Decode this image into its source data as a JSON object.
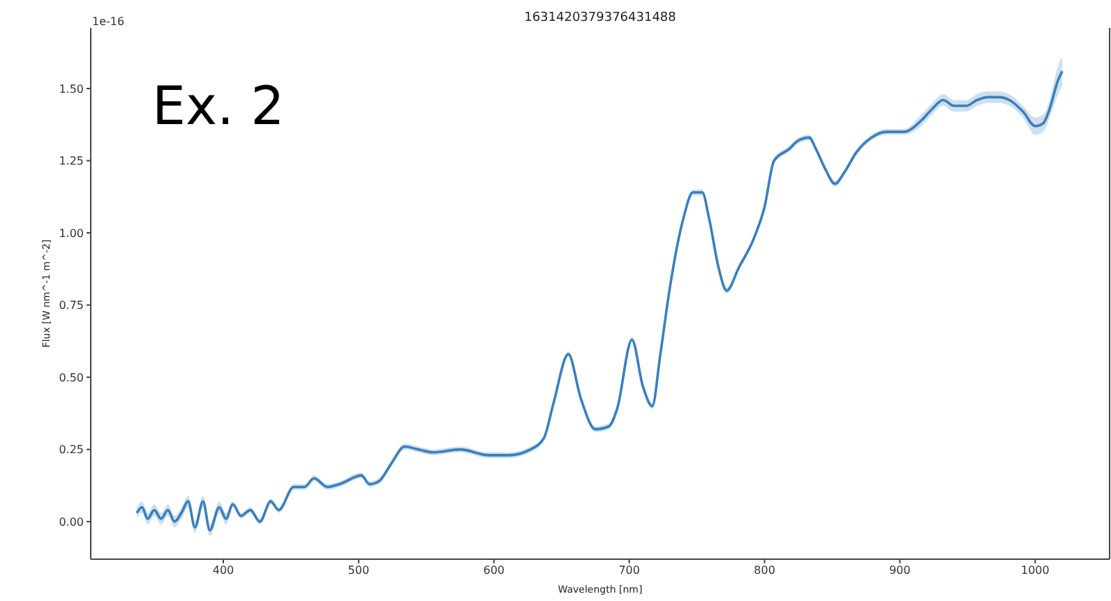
{
  "chart_data": {
    "type": "line",
    "title": "1631420379376431488",
    "xlabel": "Wavelength [nm]",
    "ylabel": "Flux [W nm^-1 m^-2]",
    "annotations": [
      "1e-16",
      "Ex. 2"
    ],
    "x": [
      336,
      340,
      344,
      349,
      354,
      359,
      364,
      369,
      374,
      379,
      385,
      390,
      397,
      402,
      407,
      413,
      420,
      427,
      435,
      441,
      452,
      460,
      467,
      477,
      486,
      502,
      508,
      515,
      524,
      534,
      544,
      555,
      575,
      596,
      611,
      627,
      637,
      644,
      655,
      664,
      675,
      685,
      691,
      702,
      710,
      717,
      723,
      730,
      740,
      747,
      754,
      759,
      766,
      772,
      781,
      792,
      800,
      807,
      818,
      825,
      833,
      838,
      845,
      852,
      859,
      868,
      879,
      890,
      903,
      916,
      924,
      932,
      940,
      949,
      957,
      965,
      973,
      981,
      991,
      1000,
      1006,
      1010,
      1017,
      1020
    ],
    "series": [
      {
        "color": "#3a7fbd",
        "values": [
          0.03,
          0.05,
          0.01,
          0.04,
          0.01,
          0.04,
          0.0,
          0.03,
          0.07,
          -0.02,
          0.07,
          -0.03,
          0.05,
          0.01,
          0.06,
          0.02,
          0.04,
          0.0,
          0.07,
          0.04,
          0.12,
          0.12,
          0.15,
          0.12,
          0.13,
          0.16,
          0.13,
          0.14,
          0.2,
          0.26,
          0.25,
          0.24,
          0.25,
          0.23,
          0.23,
          0.25,
          0.29,
          0.41,
          0.58,
          0.43,
          0.32,
          0.33,
          0.39,
          0.63,
          0.47,
          0.4,
          0.58,
          0.81,
          1.05,
          1.14,
          1.14,
          1.05,
          0.88,
          0.8,
          0.88,
          0.98,
          1.09,
          1.25,
          1.29,
          1.32,
          1.33,
          1.29,
          1.22,
          1.17,
          1.21,
          1.28,
          1.33,
          1.35,
          1.35,
          1.39,
          1.43,
          1.46,
          1.44,
          1.44,
          1.46,
          1.47,
          1.47,
          1.46,
          1.42,
          1.37,
          1.38,
          1.42,
          1.53,
          1.56
        ],
        "lower": [
          0.01,
          0.03,
          -0.01,
          0.02,
          -0.01,
          0.02,
          -0.02,
          0.01,
          0.05,
          -0.04,
          0.05,
          -0.05,
          0.03,
          -0.01,
          0.05,
          0.01,
          0.03,
          -0.01,
          0.06,
          0.03,
          0.11,
          0.11,
          0.14,
          0.11,
          0.12,
          0.15,
          0.12,
          0.13,
          0.19,
          0.25,
          0.24,
          0.23,
          0.24,
          0.22,
          0.22,
          0.24,
          0.28,
          0.4,
          0.57,
          0.42,
          0.31,
          0.32,
          0.38,
          0.62,
          0.46,
          0.39,
          0.57,
          0.8,
          1.04,
          1.13,
          1.13,
          1.04,
          0.87,
          0.79,
          0.87,
          0.97,
          1.08,
          1.24,
          1.28,
          1.31,
          1.32,
          1.28,
          1.21,
          1.16,
          1.2,
          1.27,
          1.32,
          1.34,
          1.34,
          1.37,
          1.41,
          1.44,
          1.42,
          1.42,
          1.44,
          1.45,
          1.45,
          1.44,
          1.4,
          1.34,
          1.35,
          1.39,
          1.48,
          1.51
        ],
        "upper": [
          0.05,
          0.07,
          0.03,
          0.06,
          0.03,
          0.06,
          0.02,
          0.05,
          0.09,
          0.0,
          0.09,
          -0.01,
          0.07,
          0.03,
          0.07,
          0.03,
          0.05,
          0.01,
          0.08,
          0.05,
          0.13,
          0.13,
          0.16,
          0.13,
          0.14,
          0.17,
          0.14,
          0.15,
          0.21,
          0.27,
          0.26,
          0.25,
          0.26,
          0.24,
          0.24,
          0.26,
          0.3,
          0.42,
          0.59,
          0.44,
          0.33,
          0.34,
          0.4,
          0.64,
          0.48,
          0.41,
          0.59,
          0.82,
          1.06,
          1.15,
          1.15,
          1.06,
          0.89,
          0.81,
          0.89,
          0.99,
          1.1,
          1.26,
          1.3,
          1.33,
          1.34,
          1.3,
          1.23,
          1.18,
          1.22,
          1.29,
          1.34,
          1.36,
          1.36,
          1.41,
          1.45,
          1.48,
          1.46,
          1.46,
          1.48,
          1.49,
          1.49,
          1.48,
          1.44,
          1.4,
          1.41,
          1.45,
          1.58,
          1.61
        ]
      }
    ],
    "xlim": [
      302,
      1055
    ],
    "xticks": [
      400,
      500,
      600,
      700,
      800,
      900,
      1000
    ],
    "ylim": [
      -0.13,
      1.71
    ],
    "yticks": [
      {
        "value": 0,
        "label": "0.00"
      },
      {
        "value": 0.25,
        "label": "0.25"
      },
      {
        "value": 0.5,
        "label": "0.50"
      },
      {
        "value": 0.75,
        "label": "0.75"
      },
      {
        "value": 1,
        "label": "1.00"
      },
      {
        "value": 1.25,
        "label": "1.25"
      },
      {
        "value": 1.5,
        "label": "1.50"
      }
    ],
    "grid": false,
    "legend": false,
    "marker": "none",
    "line_style": "solid"
  }
}
